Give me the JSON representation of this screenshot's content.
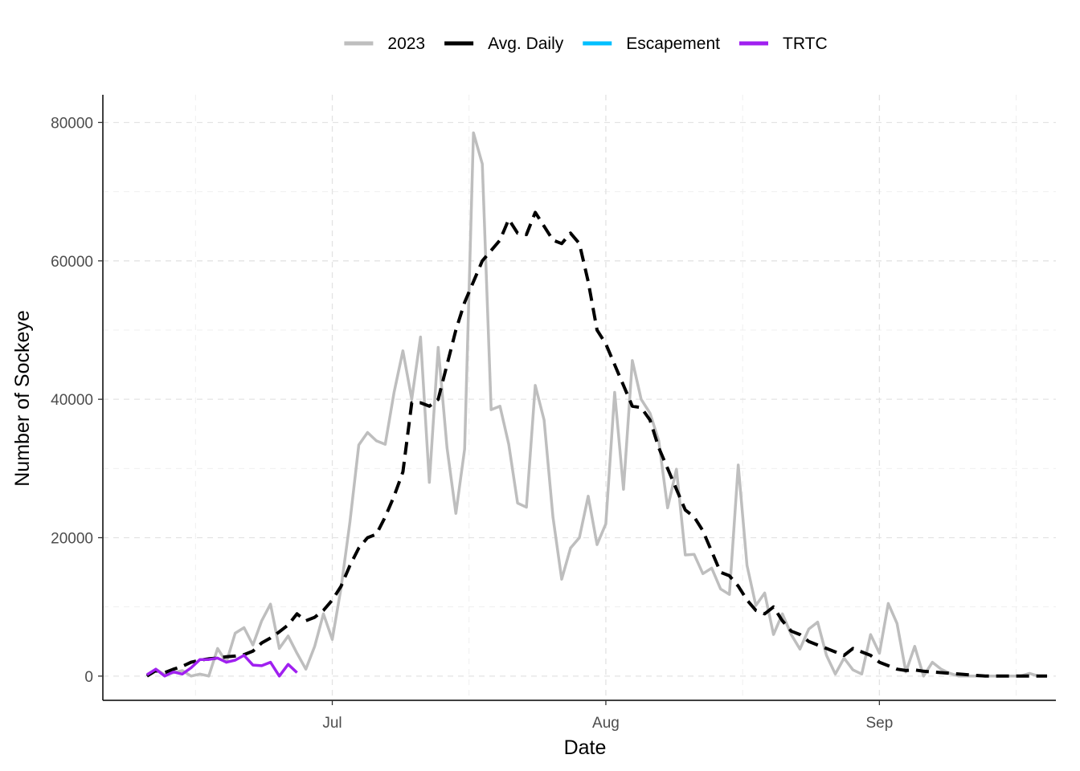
{
  "chart_data": {
    "type": "line",
    "xlabel": "Date",
    "ylabel": "Number of Sockeye",
    "x_ticks": [
      {
        "date": "2023-07-01",
        "label": "Jul"
      },
      {
        "date": "2023-08-01",
        "label": "Aug"
      },
      {
        "date": "2023-09-01",
        "label": "Sep"
      }
    ],
    "xlim": [
      "2023-06-05",
      "2023-09-21"
    ],
    "ylim": [
      -3500,
      84000
    ],
    "y_ticks": [
      0,
      20000,
      40000,
      60000,
      80000
    ],
    "y_tick_labels": [
      "0",
      "20000",
      "40000",
      "60000",
      "80000"
    ],
    "grid": true,
    "legend_position": "top",
    "series": [
      {
        "name": "2023",
        "color": "#bebebe",
        "style": "solid",
        "start_date": "2023-06-10",
        "values": [
          0,
          1000,
          200,
          500,
          800,
          0,
          300,
          0,
          4000,
          2000,
          6200,
          7000,
          4500,
          8000,
          10400,
          4000,
          5800,
          3300,
          1000,
          4300,
          9000,
          5300,
          12800,
          22300,
          33400,
          35200,
          34000,
          33500,
          41000,
          47000,
          40000,
          49000,
          28000,
          47500,
          33000,
          23500,
          32800,
          78500,
          74000,
          38500,
          39000,
          33500,
          25000,
          24400,
          42000,
          37000,
          23000,
          14000,
          18500,
          20000,
          26000,
          19000,
          22000,
          41000,
          27000,
          45600,
          40000,
          38000,
          34000,
          24300,
          29900,
          17500,
          17600,
          14800,
          15600,
          12600,
          11800,
          30500,
          16000,
          10200,
          12000,
          6000,
          9000,
          6000,
          3900,
          6800,
          7800,
          3000,
          300,
          2600,
          900,
          300,
          6000,
          3300,
          10500,
          7600,
          600,
          4300,
          0,
          2000,
          1000,
          400,
          0,
          0,
          0,
          0,
          0,
          0,
          0,
          0,
          400,
          0,
          0
        ]
      },
      {
        "name": "Avg. Daily",
        "color": "#000000",
        "style": "dashed",
        "start_date": "2023-06-10",
        "values": [
          0,
          800,
          500,
          1000,
          1400,
          2000,
          2300,
          2500,
          2600,
          2800,
          2900,
          3100,
          3600,
          4800,
          5500,
          6400,
          7400,
          9000,
          8000,
          8500,
          9500,
          11000,
          13000,
          16000,
          18500,
          20000,
          20500,
          23000,
          26000,
          29500,
          39500,
          39500,
          39000,
          40000,
          45000,
          50000,
          54000,
          57000,
          60000,
          61500,
          63000,
          66000,
          64000,
          63800,
          67000,
          65000,
          63000,
          62500,
          64000,
          62500,
          57000,
          50000,
          48000,
          45000,
          42000,
          39000,
          38800,
          37000,
          33000,
          30000,
          27000,
          24000,
          23000,
          21000,
          18000,
          15000,
          14500,
          13000,
          11000,
          9500,
          9000,
          10000,
          8000,
          6500,
          6000,
          5000,
          4500,
          4000,
          3500,
          3000,
          4000,
          3500,
          3000,
          2000,
          1500,
          1000,
          800,
          900,
          700,
          600,
          500,
          400,
          300,
          200,
          100,
          0,
          0,
          0,
          0,
          0,
          0,
          0,
          0
        ]
      },
      {
        "name": "Escapement",
        "color": "#00bfff",
        "style": "solid",
        "start_date": "2023-06-10",
        "values": []
      },
      {
        "name": "TRTC",
        "color": "#a020f0",
        "style": "solid",
        "start_date": "2023-06-10",
        "values": [
          200,
          1000,
          0,
          600,
          300,
          1200,
          2400,
          2400,
          2600,
          2000,
          2300,
          3000,
          1600,
          1500,
          2000,
          0,
          1700,
          500
        ]
      }
    ]
  }
}
